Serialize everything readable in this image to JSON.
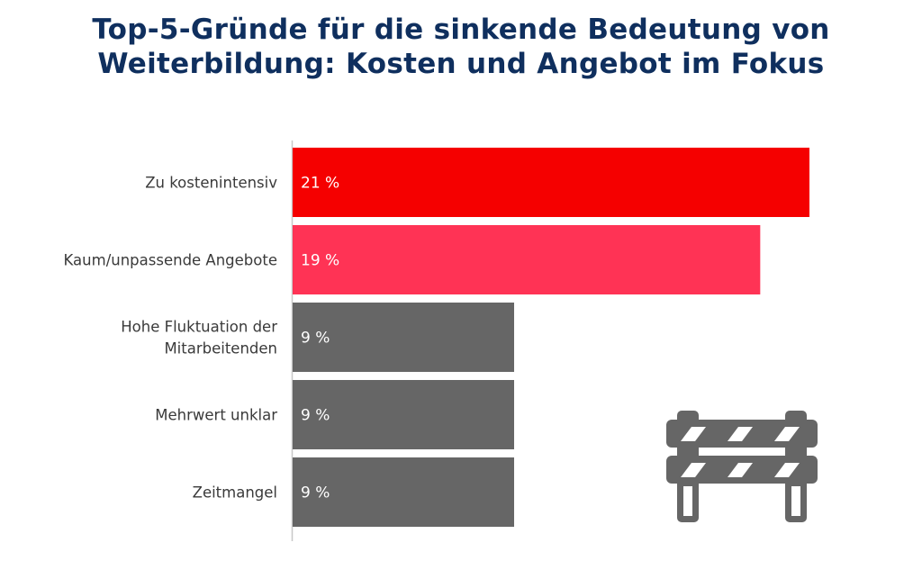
{
  "title": {
    "line1": "Top-5-Gründe für die sinkende Bedeutung von",
    "line2": "Weiterbildung: Kosten und Angebot im Fokus"
  },
  "chart_data": {
    "type": "bar",
    "orientation": "horizontal",
    "categories": [
      [
        "Zu kostenintensiv"
      ],
      [
        "Kaum/unpassende Angebote"
      ],
      [
        "Hohe Fluktuation der",
        "Mitarbeitenden"
      ],
      [
        "Mehrwert unklar"
      ],
      [
        "Zeitmangel"
      ]
    ],
    "values": [
      21,
      19,
      9,
      9,
      9
    ],
    "value_labels": [
      "21 %",
      "19 %",
      "9 %",
      "9 %",
      "9 %"
    ],
    "unit": "%",
    "xlim": [
      0,
      21
    ],
    "colors": [
      "#f50000",
      "#ff3355",
      "#666666",
      "#666666",
      "#666666"
    ],
    "grid": false,
    "legend": "none"
  },
  "decoration": {
    "icon": "road-barrier-icon",
    "color": "#666666"
  }
}
